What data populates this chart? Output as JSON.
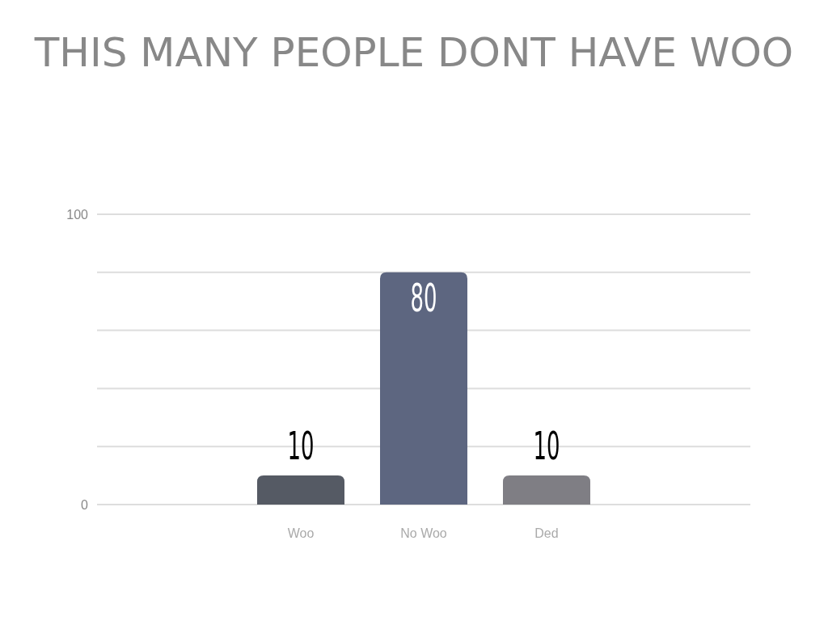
{
  "chart_data": {
    "type": "bar",
    "title": "THIS MANY PEOPLE DONT HAVE WOO",
    "categories": [
      "Woo",
      "No Woo",
      "Ded"
    ],
    "values": [
      10,
      80,
      10
    ],
    "colors": [
      "#555a64",
      "#5d6680",
      "#7f7e84"
    ],
    "ylim": [
      0,
      100
    ],
    "yticks": [
      0,
      {
        "value": 20,
        "label": null
      },
      {
        "value": 40,
        "label": null
      },
      {
        "value": 60,
        "label": null
      },
      {
        "value": 80,
        "label": null
      },
      100
    ],
    "grid": "y",
    "data_labels": true
  }
}
